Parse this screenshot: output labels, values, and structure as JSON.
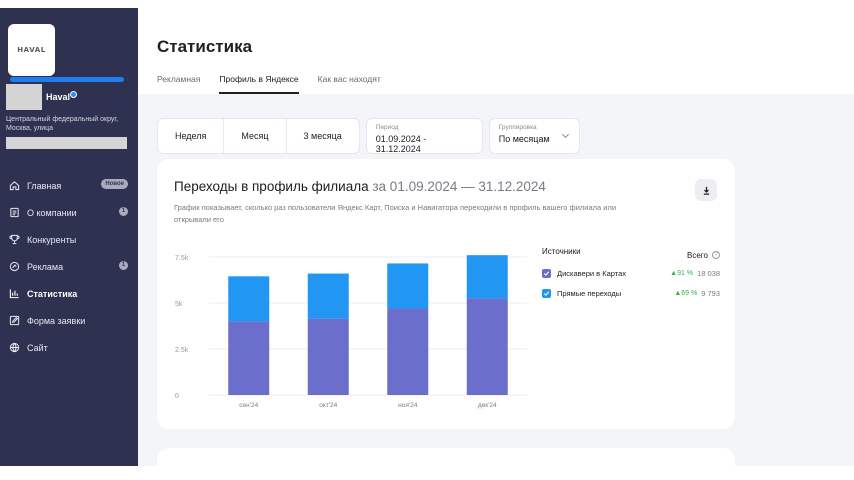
{
  "brand": {
    "logo_text": "HAVAL"
  },
  "business": {
    "name": "Haval",
    "address": "Центральный федеральный округ, Москва, улица"
  },
  "colors": {
    "sidebar": "#2f3150",
    "accent": "#1e7df0",
    "series_top": "#2196f3",
    "series_bottom": "#6b6fcb"
  },
  "sidebar": {
    "items": [
      {
        "label": "Главная",
        "icon": "home-icon",
        "badge": "Новое"
      },
      {
        "label": "О компании",
        "icon": "document-icon",
        "count": "1"
      },
      {
        "label": "Конкуренты",
        "icon": "trophy-icon"
      },
      {
        "label": "Реклама",
        "icon": "megaphone-icon",
        "count": "1"
      },
      {
        "label": "Статистика",
        "icon": "bar-chart-icon",
        "active": true
      },
      {
        "label": "Форма заявки",
        "icon": "edit-icon"
      },
      {
        "label": "Сайт",
        "icon": "globe-icon"
      }
    ]
  },
  "header": {
    "title": "Статистика",
    "tabs": [
      {
        "label": "Рекламная"
      },
      {
        "label": "Профиль в Яндексе",
        "active": true
      },
      {
        "label": "Как вас находят"
      }
    ]
  },
  "filters": {
    "ranges": [
      "Неделя",
      "Месяц",
      "3 месяца"
    ],
    "period_label": "Период",
    "period_value": "01.09.2024 - 31.12.2024",
    "grouping_label": "Группировка",
    "grouping_value": "По месяцам"
  },
  "card": {
    "title": "Переходы в профиль филиала",
    "period": "за 01.09.2024 — 31.12.2024",
    "description": "График показывает, сколько раз пользователи Яндекс Карт, Поиска и Навигатора переходили в профиль вашего филиала или открывали его"
  },
  "legend": {
    "header": "Источники",
    "total_header": "Всего",
    "items": [
      {
        "name": "Дискавери в Картах",
        "pct": "▲91 %",
        "total": "18 038",
        "color": "#6b6fcb"
      },
      {
        "name": "Прямые переходы",
        "pct": "▲69 %",
        "total": "9 793",
        "color": "#2196f3"
      }
    ]
  },
  "chart_data": {
    "type": "bar",
    "stacked": true,
    "categories": [
      "сен'24",
      "окт'24",
      "ноя'24",
      "дек'24"
    ],
    "series": [
      {
        "name": "Дискавери в Картах",
        "values": [
          4000,
          4150,
          4700,
          5250
        ],
        "color": "#6b6fcb"
      },
      {
        "name": "Прямые переходы",
        "values": [
          2450,
          2450,
          2450,
          2350
        ],
        "color": "#2196f3"
      }
    ],
    "y_ticks": [
      {
        "v": 0,
        "label": "0"
      },
      {
        "v": 2500,
        "label": "2.5k"
      },
      {
        "v": 5000,
        "label": "5k"
      },
      {
        "v": 7500,
        "label": "7.5k"
      }
    ],
    "ylim": [
      0,
      7500
    ],
    "grid": true
  }
}
